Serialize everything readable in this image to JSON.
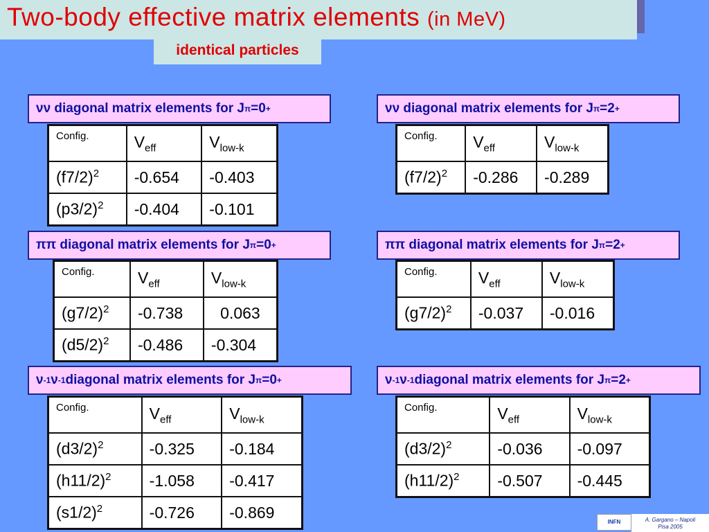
{
  "title": {
    "main": "Two-body effective matrix elements ",
    "unit": "(in MeV)"
  },
  "subtitle": "identical particles",
  "sections": [
    {
      "heading": {
        "prefix": "νν diagonal matrix elements for J",
        "pi": "π",
        "eq": "=0",
        "parity": "+"
      },
      "columns": {
        "config": "Config.",
        "veff": "V",
        "veff_sub": "eff",
        "vlowk": "V",
        "vlowk_sub": "low-k"
      },
      "rows": [
        {
          "orbit": "(f7/2)",
          "power": "2",
          "veff": "-0.654",
          "vlowk": "-0.403"
        },
        {
          "orbit": "(p3/2)",
          "power": "2",
          "veff": "-0.404",
          "vlowk": "-0.101"
        }
      ]
    },
    {
      "heading": {
        "prefix": "νν diagonal matrix elements for J",
        "pi": "π",
        "eq": "=2",
        "parity": "+"
      },
      "columns": {
        "config": "Config.",
        "veff": "V",
        "veff_sub": "eff",
        "vlowk": "V",
        "vlowk_sub": "low-k"
      },
      "rows": [
        {
          "orbit": "(f7/2)",
          "power": "2",
          "veff": "-0.286",
          "vlowk": "-0.289"
        }
      ]
    },
    {
      "heading": {
        "prefix": "ππ diagonal matrix elements for J",
        "pi": "π",
        "eq": "=0",
        "parity": "+"
      },
      "columns": {
        "config": "Config.",
        "veff": "V",
        "veff_sub": "eff",
        "vlowk": "V",
        "vlowk_sub": "low-k"
      },
      "rows": [
        {
          "orbit": "(g7/2)",
          "power": "2",
          "veff": "-0.738",
          "vlowk": "0.063"
        },
        {
          "orbit": "(d5/2)",
          "power": "2",
          "veff": "-0.486",
          "vlowk": "-0.304"
        }
      ]
    },
    {
      "heading": {
        "prefix": "ππ diagonal matrix elements for J",
        "pi": "π",
        "eq": "=2",
        "parity": "+"
      },
      "columns": {
        "config": "Config.",
        "veff": "V",
        "veff_sub": "eff",
        "vlowk": "V",
        "vlowk_sub": "low-k"
      },
      "rows": [
        {
          "orbit": "(g7/2)",
          "power": "2",
          "veff": "-0.037",
          "vlowk": "-0.016"
        }
      ]
    },
    {
      "heading": {
        "nu1": "ν",
        "exp1": "-1",
        "nu2": "ν",
        "exp2": "-1",
        "prefix": " diagonal matrix elements for J",
        "pi": "π",
        "eq": "=0",
        "parity": "+"
      },
      "columns": {
        "config": "Config.",
        "veff": "V",
        "veff_sub": "eff",
        "vlowk": "V",
        "vlowk_sub": "low-k"
      },
      "rows": [
        {
          "orbit": "(d3/2)",
          "power": "2",
          "veff": "-0.325",
          "vlowk": "-0.184"
        },
        {
          "orbit": "(h11/2)",
          "power": "2",
          "veff": "-1.058",
          "vlowk": "-0.417"
        },
        {
          "orbit": "(s1/2)",
          "power": "2",
          "veff": "-0.726",
          "vlowk": "-0.869"
        }
      ]
    },
    {
      "heading": {
        "nu1": "ν",
        "exp1": "-1",
        "nu2": "ν",
        "exp2": "-1",
        "prefix": " diagonal matrix elements for J",
        "pi": "π",
        "eq": "=2",
        "parity": "+"
      },
      "columns": {
        "config": "Config.",
        "veff": "V",
        "veff_sub": "eff",
        "vlowk": "V",
        "vlowk_sub": "low-k"
      },
      "rows": [
        {
          "orbit": "(d3/2)",
          "power": "2",
          "veff": "-0.036",
          "vlowk": "-0.097"
        },
        {
          "orbit": "(h11/2)",
          "power": "2",
          "veff": "-0.507",
          "vlowk": "-0.445"
        }
      ]
    }
  ],
  "footer": {
    "author": "A. Gargano – Napoli",
    "event": "Pisa  2005",
    "logo_text": "INFN"
  }
}
